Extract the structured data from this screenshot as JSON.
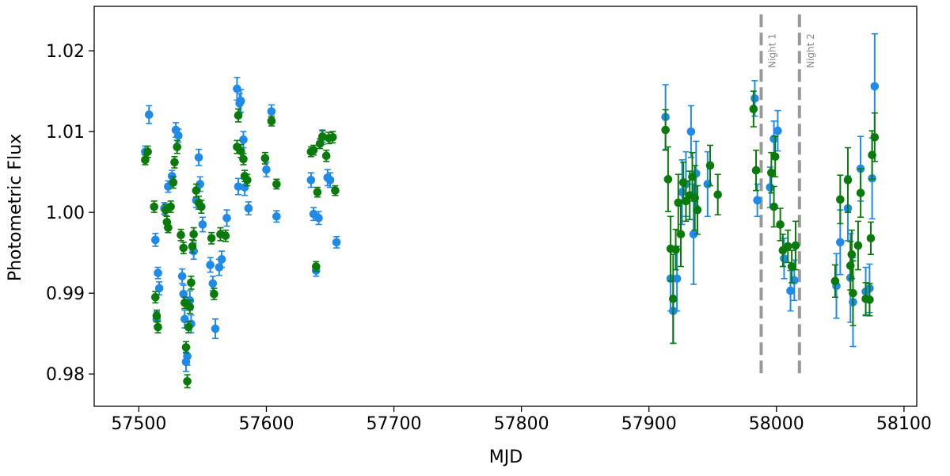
{
  "chart_data": {
    "type": "scatter",
    "title": "",
    "xlabel": "MJD",
    "ylabel": "Photometric Flux",
    "xlim": [
      57465,
      58110
    ],
    "ylim": [
      0.976,
      1.0255
    ],
    "xticks": [
      57500,
      57600,
      57700,
      57800,
      57900,
      58000,
      58100
    ],
    "xtick_labels": [
      "57500",
      "57600",
      "57700",
      "57800",
      "57900",
      "58000",
      "58100"
    ],
    "yticks": [
      0.98,
      0.99,
      1.0,
      1.01,
      1.02
    ],
    "ytick_labels": [
      "0.98",
      "0.99",
      "1.00",
      "1.01",
      "1.02"
    ],
    "grid": false,
    "vlines": [
      {
        "x": 57988,
        "label": "Night 1",
        "y_range": [
          0.98,
          1.0245
        ],
        "color": "#999999",
        "style": "dashed"
      },
      {
        "x": 58018,
        "label": "Night 2",
        "y_range": [
          0.98,
          1.0245
        ],
        "color": "#999999",
        "style": "dashed"
      }
    ],
    "series": [
      {
        "color": "#1f8ae8",
        "points": [
          [
            57505,
            1.0075,
            0.0007
          ],
          [
            57508,
            1.0121,
            0.0011
          ],
          [
            57513,
            0.9966,
            0.0008
          ],
          [
            57514,
            0.9868,
            0.0009
          ],
          [
            57515,
            0.9925,
            0.0007
          ],
          [
            57516,
            0.9906,
            0.0008
          ],
          [
            57520,
            1.0005,
            0.0007
          ],
          [
            57523,
            1.0032,
            0.0007
          ],
          [
            57526,
            1.0045,
            0.0007
          ],
          [
            57529,
            1.0102,
            0.0009
          ],
          [
            57531,
            1.0095,
            0.0008
          ],
          [
            57534,
            0.9921,
            0.0009
          ],
          [
            57535,
            0.9899,
            0.0011
          ],
          [
            57536,
            0.9868,
            0.0011
          ],
          [
            57537,
            0.9815,
            0.0012
          ],
          [
            57538,
            0.9822,
            0.0011
          ],
          [
            57540,
            0.9891,
            0.0012
          ],
          [
            57541,
            0.9862,
            0.0011
          ],
          [
            57543,
            0.9952,
            0.001
          ],
          [
            57545,
            1.0015,
            0.0009
          ],
          [
            57547,
            1.0068,
            0.001
          ],
          [
            57548,
            1.0035,
            0.0009
          ],
          [
            57550,
            0.9985,
            0.0009
          ],
          [
            57556,
            0.9935,
            0.0009
          ],
          [
            57558,
            0.9912,
            0.0009
          ],
          [
            57560,
            0.9856,
            0.0012
          ],
          [
            57563,
            0.9932,
            0.001
          ],
          [
            57565,
            0.9942,
            0.001
          ],
          [
            57569,
            0.9993,
            0.001
          ],
          [
            57577,
            1.0153,
            0.0014
          ],
          [
            57578,
            1.0032,
            0.001
          ],
          [
            57579,
            1.0135,
            0.0012
          ],
          [
            57580,
            1.0138,
            0.0014
          ],
          [
            57582,
            1.009,
            0.001
          ],
          [
            57583,
            1.0031,
            0.001
          ],
          [
            57586,
            1.0005,
            0.0008
          ],
          [
            57600,
            1.0053,
            0.0009
          ],
          [
            57604,
            1.0125,
            0.0008
          ],
          [
            57608,
            0.9995,
            0.0007
          ],
          [
            57635,
            1.004,
            0.0009
          ],
          [
            57637,
            0.9998,
            0.0008
          ],
          [
            57639,
            0.9928,
            0.0007
          ],
          [
            57641,
            0.9993,
            0.0008
          ],
          [
            57644,
            1.0093,
            0.0009
          ],
          [
            57648,
            1.0043,
            0.001
          ],
          [
            57650,
            1.004,
            0.0009
          ],
          [
            57655,
            0.9963,
            0.0007
          ],
          [
            57913,
            1.0118,
            0.004
          ],
          [
            57917,
            0.9918,
            0.004
          ],
          [
            57919,
            0.9878,
            0.004
          ],
          [
            57922,
            0.9918,
            0.004
          ],
          [
            57926,
            1.0025,
            0.004
          ],
          [
            57929,
            1.0035,
            0.004
          ],
          [
            57933,
            1.01,
            0.0032
          ],
          [
            57935,
            0.9973,
            0.0062
          ],
          [
            57937,
            1.0048,
            0.004
          ],
          [
            57946,
            1.0035,
            0.004
          ],
          [
            57983,
            1.0141,
            0.0022
          ],
          [
            57985,
            1.0015,
            0.002
          ],
          [
            57995,
            1.0031,
            0.0025
          ],
          [
            57998,
            1.0091,
            0.0022
          ],
          [
            58001,
            1.0101,
            0.0025
          ],
          [
            58006,
            0.9943,
            0.0025
          ],
          [
            58011,
            0.9903,
            0.0025
          ],
          [
            58014,
            0.9916,
            0.0025
          ],
          [
            58047,
            0.9909,
            0.004
          ],
          [
            58050,
            0.9963,
            0.004
          ],
          [
            58056,
            1.0005,
            0.004
          ],
          [
            58058,
            0.9919,
            0.0055
          ],
          [
            58060,
            0.9889,
            0.0055
          ],
          [
            58066,
            1.0054,
            0.004
          ],
          [
            58070,
            0.9902,
            0.003
          ],
          [
            58073,
            0.9906,
            0.003
          ],
          [
            58075,
            1.0042,
            0.005
          ],
          [
            58077,
            1.0156,
            0.0065
          ]
        ]
      },
      {
        "color": "#0a7a0a",
        "points": [
          [
            57505,
            1.0065,
            0.0006
          ],
          [
            57507,
            1.0075,
            0.0007
          ],
          [
            57512,
            1.0007,
            0.0007
          ],
          [
            57513,
            0.9895,
            0.0007
          ],
          [
            57514,
            0.9872,
            0.0007
          ],
          [
            57515,
            0.9858,
            0.0007
          ],
          [
            57521,
            1.0003,
            0.0007
          ],
          [
            57522,
            0.9988,
            0.0007
          ],
          [
            57523,
            0.9981,
            0.0006
          ],
          [
            57525,
            1.0007,
            0.0007
          ],
          [
            57527,
            1.0037,
            0.0007
          ],
          [
            57528,
            1.0062,
            0.0007
          ],
          [
            57530,
            1.0081,
            0.0008
          ],
          [
            57533,
            0.9972,
            0.0007
          ],
          [
            57535,
            0.9956,
            0.0007
          ],
          [
            57536,
            0.9888,
            0.0007
          ],
          [
            57537,
            0.9833,
            0.0007
          ],
          [
            57538,
            0.9791,
            0.0008
          ],
          [
            57539,
            0.9858,
            0.0007
          ],
          [
            57540,
            0.9883,
            0.0008
          ],
          [
            57541,
            0.9913,
            0.0008
          ],
          [
            57542,
            0.9958,
            0.0008
          ],
          [
            57543,
            0.9973,
            0.0008
          ],
          [
            57545,
            1.0027,
            0.0008
          ],
          [
            57547,
            1.0012,
            0.0008
          ],
          [
            57549,
            1.0007,
            0.0008
          ],
          [
            57557,
            0.9968,
            0.0007
          ],
          [
            57559,
            0.9899,
            0.0007
          ],
          [
            57564,
            0.9973,
            0.0008
          ],
          [
            57568,
            0.9971,
            0.0007
          ],
          [
            57577,
            1.0081,
            0.0008
          ],
          [
            57578,
            1.012,
            0.0008
          ],
          [
            57580,
            1.0076,
            0.0008
          ],
          [
            57582,
            1.0066,
            0.0007
          ],
          [
            57583,
            1.0045,
            0.0007
          ],
          [
            57585,
            1.004,
            0.0007
          ],
          [
            57599,
            1.0067,
            0.0007
          ],
          [
            57604,
            1.0113,
            0.0006
          ],
          [
            57608,
            1.0035,
            0.0006
          ],
          [
            57635,
            1.0075,
            0.0006
          ],
          [
            57637,
            1.0077,
            0.0006
          ],
          [
            57639,
            0.9933,
            0.0006
          ],
          [
            57640,
            1.0025,
            0.0006
          ],
          [
            57642,
            1.0085,
            0.0006
          ],
          [
            57644,
            1.0094,
            0.0007
          ],
          [
            57647,
            1.007,
            0.0007
          ],
          [
            57649,
            1.0092,
            0.0007
          ],
          [
            57652,
            1.0093,
            0.0007
          ],
          [
            57654,
            1.0027,
            0.0006
          ],
          [
            57913,
            1.0102,
            0.0025
          ],
          [
            57915,
            1.0041,
            0.004
          ],
          [
            57917,
            0.9955,
            0.004
          ],
          [
            57919,
            0.9893,
            0.0055
          ],
          [
            57921,
            0.9954,
            0.0025
          ],
          [
            57923,
            1.0012,
            0.0035
          ],
          [
            57925,
            0.9973,
            0.004
          ],
          [
            57927,
            1.0037,
            0.0025
          ],
          [
            57929,
            1.0014,
            0.0025
          ],
          [
            57932,
            1.0021,
            0.003
          ],
          [
            57934,
            1.0044,
            0.003
          ],
          [
            57936,
            1.0018,
            0.004
          ],
          [
            57938,
            1.0003,
            0.003
          ],
          [
            57948,
            1.0058,
            0.0025
          ],
          [
            57954,
            1.0022,
            0.0025
          ],
          [
            57982,
            1.0128,
            0.0022
          ],
          [
            57984,
            1.0052,
            0.0025
          ],
          [
            57996,
            1.0049,
            0.0025
          ],
          [
            57998,
            1.0007,
            0.0025
          ],
          [
            57999,
            1.0069,
            0.0025
          ],
          [
            58003,
            0.9985,
            0.002
          ],
          [
            58005,
            0.9953,
            0.002
          ],
          [
            58009,
            0.9958,
            0.002
          ],
          [
            58012,
            0.9933,
            0.002
          ],
          [
            58015,
            0.9959,
            0.003
          ],
          [
            58046,
            0.9915,
            0.002
          ],
          [
            58050,
            1.0016,
            0.003
          ],
          [
            58056,
            1.004,
            0.004
          ],
          [
            58058,
            0.9934,
            0.003
          ],
          [
            58059,
            0.9948,
            0.003
          ],
          [
            58060,
            0.99,
            0.004
          ],
          [
            58064,
            0.9959,
            0.003
          ],
          [
            58066,
            1.0024,
            0.003
          ],
          [
            58070,
            0.9893,
            0.002
          ],
          [
            58073,
            0.9892,
            0.002
          ],
          [
            58074,
            0.9968,
            0.002
          ],
          [
            58075,
            1.0071,
            0.003
          ],
          [
            58077,
            1.0093,
            0.003
          ]
        ]
      }
    ]
  }
}
